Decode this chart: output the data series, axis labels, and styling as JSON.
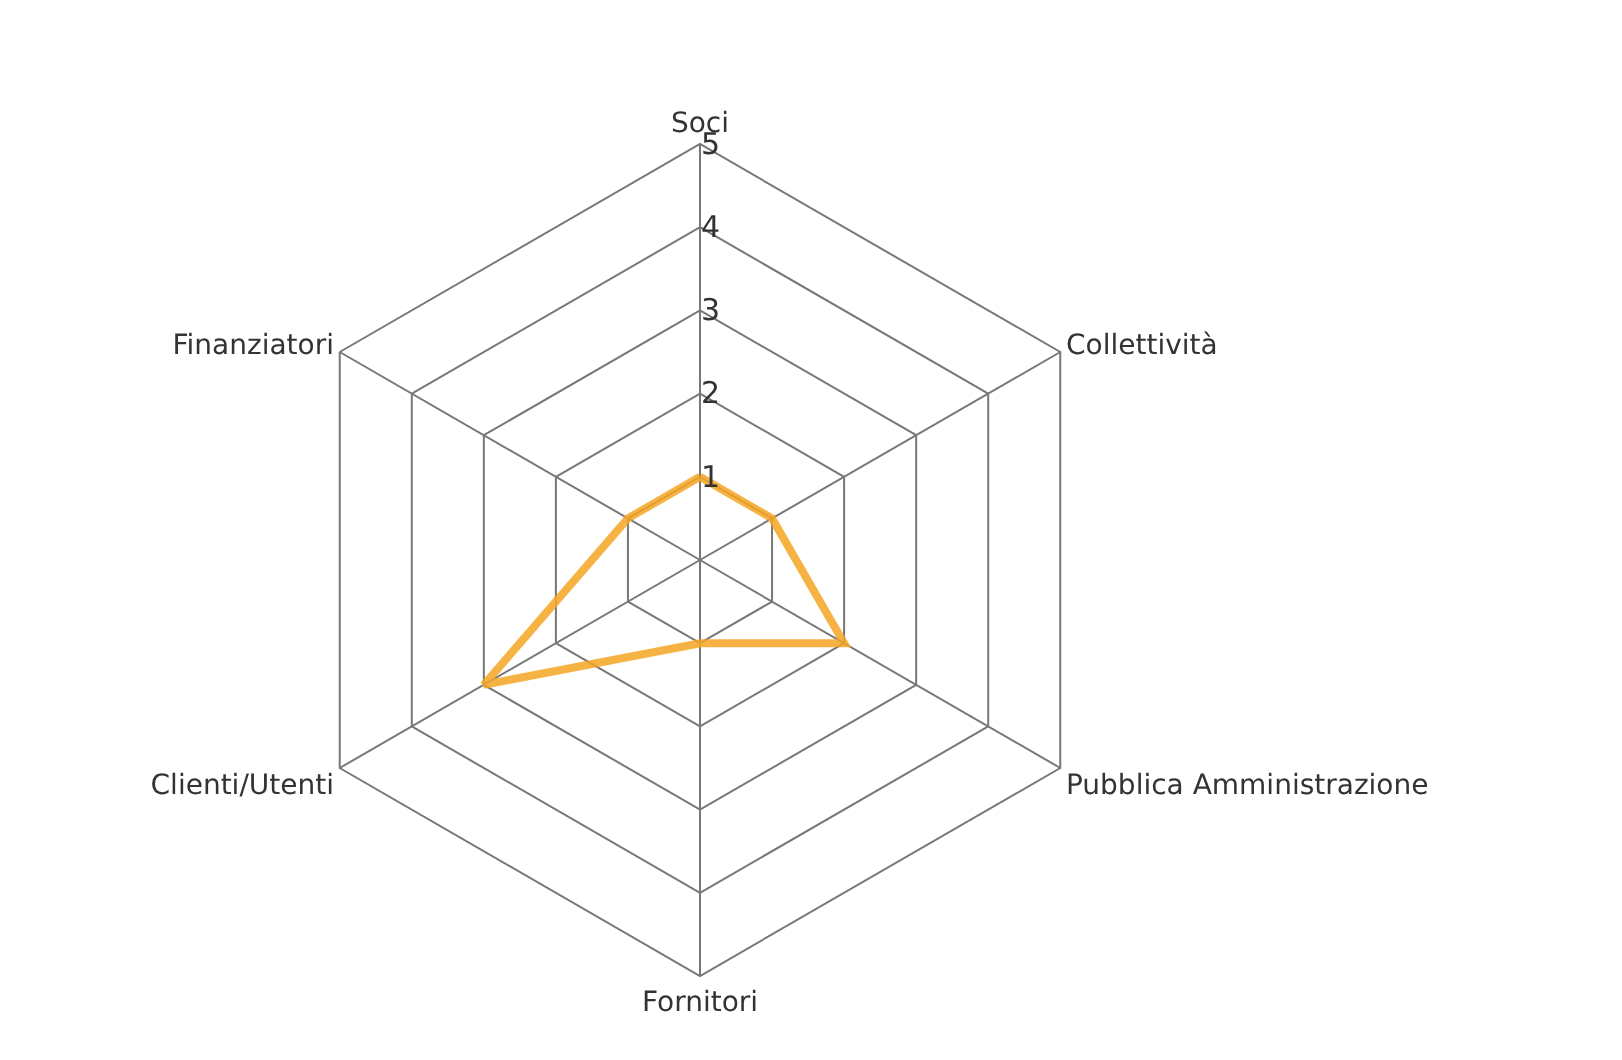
{
  "chart_data": {
    "type": "radar",
    "categories": [
      "Soci",
      "Collettività",
      "Pubblica Amministrazione",
      "Fornitori",
      "Clienti/Utenti",
      "Finanziatori"
    ],
    "series": [
      {
        "color": "#f5a623",
        "values": [
          1,
          1,
          2,
          1,
          3,
          1
        ]
      }
    ],
    "ylim": [
      0,
      5
    ],
    "yticks": [
      1,
      2,
      3,
      4,
      5
    ],
    "grid": true,
    "marker": "none",
    "line_style": "solid"
  }
}
